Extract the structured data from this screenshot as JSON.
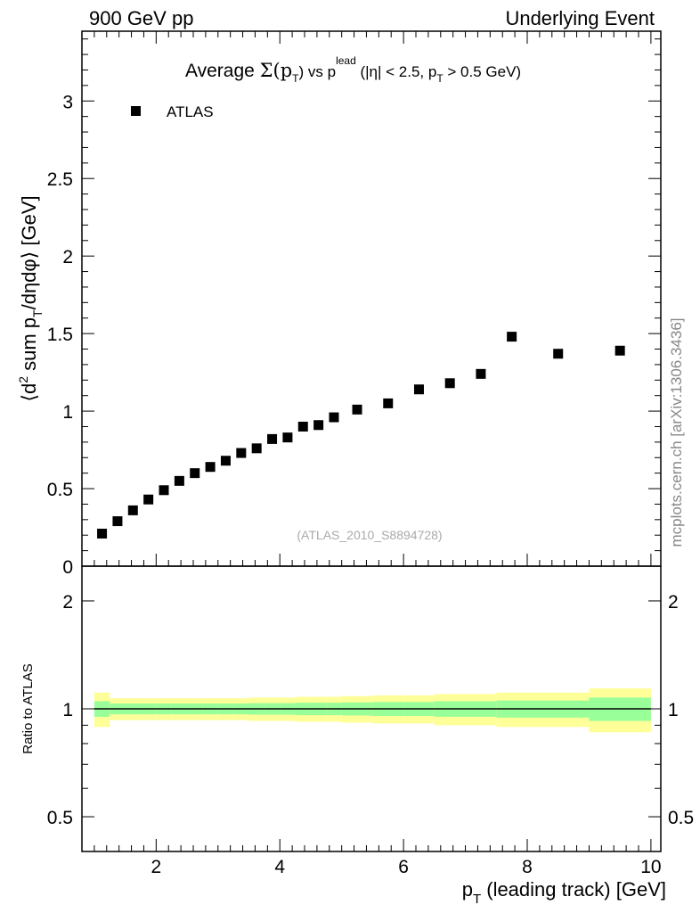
{
  "header": {
    "left": "900 GeV pp",
    "right": "Underlying Event"
  },
  "side_label": "mcplots.cern.ch [arXiv:1306.3436]",
  "chart_data": [
    {
      "type": "scatter",
      "title": "Average Σ(pT) vs pT^lead (|η| < 2.5, pT > 0.5 GeV)",
      "title_parts": {
        "a": "Average ",
        "sigma": "Σ(p",
        "sub_t": "T",
        "b": ") vs p",
        "sup": "lead",
        "c": " (|η| < 2.5, p",
        "d": " > 0.5 GeV)"
      },
      "ylabel": "⟨d² sum pT/dηdφ⟩ [GeV]",
      "ylabel_parts": {
        "a": "⟨d",
        "sup": "2",
        "b": " sum p",
        "sub": "T",
        "c": "/dηdφ⟩ [GeV]"
      },
      "xlim": [
        0.8,
        10.16
      ],
      "ylim": [
        0,
        3.45
      ],
      "yticks": [
        "0",
        "0.5",
        "1",
        "1.5",
        "2",
        "2.5",
        "3"
      ],
      "legend": [
        {
          "name": "ATLAS",
          "marker": "square",
          "color": "#000000"
        }
      ],
      "legend_position": "top-left",
      "annotation": "(ATLAS_2010_S8894728)",
      "series": [
        {
          "name": "ATLAS",
          "x": [
            1.125,
            1.375,
            1.625,
            1.875,
            2.125,
            2.375,
            2.625,
            2.875,
            3.125,
            3.375,
            3.625,
            3.875,
            4.125,
            4.375,
            4.625,
            4.875,
            5.25,
            5.75,
            6.25,
            6.75,
            7.25,
            7.75,
            8.5,
            9.5
          ],
          "y": [
            0.21,
            0.29,
            0.36,
            0.43,
            0.49,
            0.55,
            0.6,
            0.64,
            0.68,
            0.73,
            0.76,
            0.82,
            0.83,
            0.9,
            0.91,
            0.96,
            1.01,
            1.05,
            1.14,
            1.18,
            1.24,
            1.48,
            1.37,
            1.39
          ],
          "bin_edges": [
            1,
            1.25,
            1.5,
            1.75,
            2,
            2.25,
            2.5,
            2.75,
            3,
            3.25,
            3.5,
            3.75,
            4,
            4.25,
            4.5,
            4.75,
            5,
            5.5,
            6,
            6.5,
            7,
            7.5,
            8,
            9,
            10
          ]
        }
      ]
    },
    {
      "type": "area",
      "ylabel": "Ratio to ATLAS",
      "xlabel": "pT (leading track) [GeV]",
      "xlabel_parts": {
        "a": "p",
        "sub": "T",
        "b": " (leading track) [GeV]"
      },
      "xticks": [
        "2",
        "4",
        "6",
        "8",
        "10"
      ],
      "yticks": [
        "0.5",
        "1",
        "2"
      ],
      "ylim": [
        0.4,
        2.5
      ],
      "yscale": "log",
      "stat_err": [
        0.05,
        0.035,
        0.035,
        0.035,
        0.035,
        0.035,
        0.035,
        0.035,
        0.035,
        0.035,
        0.037,
        0.037,
        0.037,
        0.04,
        0.04,
        0.04,
        0.042,
        0.045,
        0.045,
        0.05,
        0.05,
        0.055,
        0.055,
        0.075
      ],
      "total_err": [
        0.11,
        0.07,
        0.07,
        0.07,
        0.07,
        0.07,
        0.07,
        0.07,
        0.07,
        0.07,
        0.075,
        0.075,
        0.075,
        0.08,
        0.08,
        0.08,
        0.085,
        0.09,
        0.09,
        0.1,
        0.1,
        0.11,
        0.11,
        0.14
      ],
      "colors": {
        "stat": "#99ff99",
        "total": "#ffff99"
      }
    }
  ]
}
